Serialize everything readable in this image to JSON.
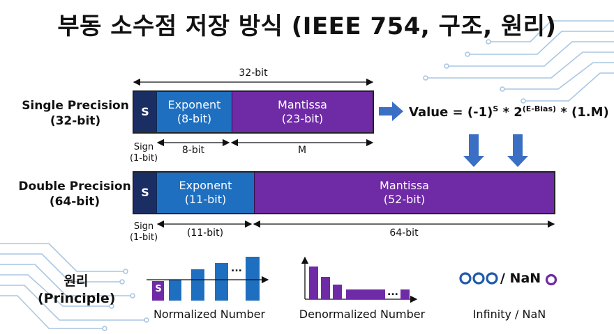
{
  "title": "부동 소수점 저장 방식 (IEEE 754, 구조, 원리)",
  "single": {
    "label_line1": "Single Precision",
    "label_line2": "(32-bit)",
    "total_label": "32-bit",
    "sign": "S",
    "exponent_line1": "Exponent",
    "exponent_line2": "(8-bit)",
    "mantissa_line1": "Mantissa",
    "mantissa_line2": "(23-bit)",
    "sign_caption_line1": "Sign",
    "sign_caption_line2": "(1-bit)",
    "exponent_span": "8-bit",
    "mantissa_span": "M"
  },
  "formula": {
    "prefix": "Value = (-1)",
    "sup1": "S",
    "mid": " * 2",
    "sup2": "(E-Bias)",
    "suffix": " * (1.M)"
  },
  "double": {
    "label_line1": "Double Precision",
    "label_line2": "(64-bit)",
    "sign": "S",
    "exponent_line1": "Exponent",
    "exponent_line2": "(11-bit)",
    "mantissa_line1": "Mantissa",
    "mantissa_line2": "(52-bit)",
    "sign_caption_line1": "Sign",
    "sign_caption_line2": "(1-bit)",
    "exponent_span": "(11-bit)",
    "mantissa_span": "64-bit"
  },
  "principle": {
    "line1": "원리",
    "line2": "(Principle)"
  },
  "normalized": {
    "caption": "Normalized Number",
    "sign_box": "S",
    "ellipsis": "..."
  },
  "denormalized": {
    "caption": "Denormalized Number",
    "ellipsis": "..."
  },
  "special": {
    "label": "/ NaN",
    "caption": "Infinity / NaN"
  },
  "colors": {
    "sign": "#1b2e63",
    "exponent": "#1e6fc0",
    "mantissa": "#6f2aa5",
    "arrow": "#3a6fc4",
    "circuit": "#a9c6e4"
  }
}
